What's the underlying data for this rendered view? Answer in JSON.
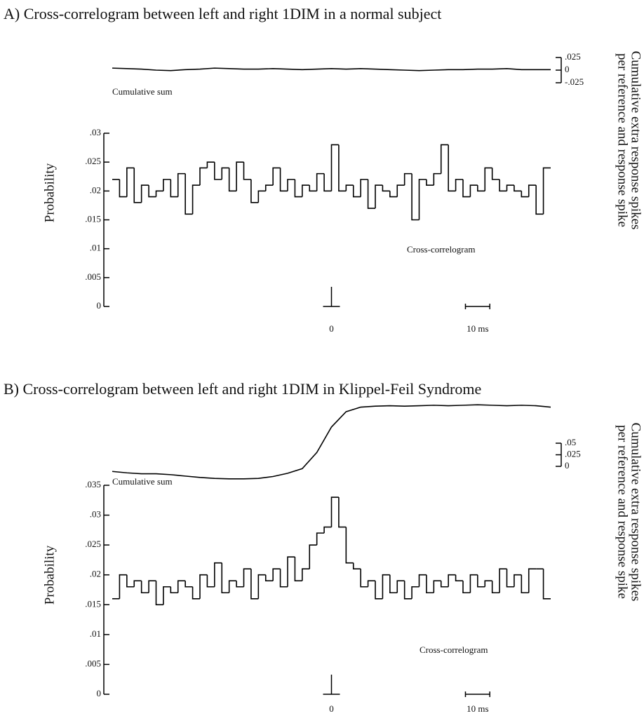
{
  "chart_data": [
    {
      "type": "histogram",
      "title": "A)  Cross-correlogram between left and right 1DIM in a normal subject",
      "ylabel": "Probability",
      "y2label": [
        "Cumulative extra response spikes",
        "per reference and response spike"
      ],
      "annotations": [
        "Cumulative sum",
        "Cross-correlogram"
      ],
      "color": "#000000",
      "bins": [
        -90,
        -87,
        -84,
        -81,
        -78,
        -75,
        -72,
        -69,
        -66,
        -63,
        -60,
        -57,
        -54,
        -51,
        -48,
        -45,
        -42,
        -39,
        -36,
        -33,
        -30,
        -27,
        -24,
        -21,
        -18,
        -15,
        -12,
        -9,
        -6,
        -3,
        0,
        3,
        6,
        9,
        12,
        15,
        18,
        21,
        24,
        27,
        30,
        33,
        36,
        39,
        42,
        45,
        48,
        51,
        54,
        57,
        60,
        63,
        66,
        69,
        72,
        75,
        78,
        81,
        84,
        87,
        90
      ],
      "values": [
        0.022,
        0.019,
        0.024,
        0.018,
        0.021,
        0.019,
        0.02,
        0.022,
        0.019,
        0.023,
        0.016,
        0.021,
        0.024,
        0.025,
        0.022,
        0.024,
        0.02,
        0.025,
        0.022,
        0.018,
        0.02,
        0.021,
        0.024,
        0.02,
        0.022,
        0.019,
        0.021,
        0.02,
        0.023,
        0.02,
        0.028,
        0.02,
        0.021,
        0.019,
        0.022,
        0.017,
        0.021,
        0.02,
        0.019,
        0.021,
        0.023,
        0.015,
        0.022,
        0.021,
        0.023,
        0.028,
        0.02,
        0.022,
        0.019,
        0.021,
        0.02,
        0.024,
        0.022,
        0.02,
        0.021,
        0.02,
        0.019,
        0.021,
        0.016,
        0.024
      ],
      "xlim": [
        -90,
        90
      ],
      "xticks": [
        {
          "value": 0,
          "label": "0"
        }
      ],
      "scale_bar": {
        "value": 10,
        "label": "10 ms"
      },
      "ylim": [
        0,
        0.03
      ],
      "yticks": [
        {
          "value": 0,
          "label": "0"
        },
        {
          "value": 0.005,
          "label": ".005"
        },
        {
          "value": 0.01,
          "label": ".01"
        },
        {
          "value": 0.015,
          "label": ".015"
        },
        {
          "value": 0.02,
          "label": ".02"
        },
        {
          "value": 0.025,
          "label": ".025"
        },
        {
          "value": 0.03,
          "label": ".03"
        }
      ],
      "line": {
        "axis": "y2",
        "x": [
          -90,
          -84,
          -78,
          -72,
          -66,
          -60,
          -54,
          -48,
          -42,
          -36,
          -30,
          -24,
          -18,
          -12,
          -6,
          0,
          6,
          12,
          18,
          24,
          30,
          36,
          42,
          48,
          54,
          60,
          66,
          72,
          78,
          84,
          90
        ],
        "values": [
          0.004,
          0.003,
          0.002,
          0.0,
          -0.001,
          0.001,
          0.002,
          0.004,
          0.003,
          0.002,
          0.002,
          0.003,
          0.002,
          0.001,
          0.002,
          0.003,
          0.002,
          0.003,
          0.002,
          0.001,
          0.0,
          -0.001,
          0.0,
          0.001,
          0.001,
          0.002,
          0.002,
          0.003,
          0.001,
          0.001,
          0.001
        ]
      },
      "y2lim": [
        -0.025,
        0.025
      ],
      "y2ticks": [
        {
          "value": -0.025,
          "label": "-.025"
        },
        {
          "value": 0,
          "label": "0"
        },
        {
          "value": 0.025,
          "label": ".025"
        }
      ]
    },
    {
      "type": "histogram",
      "title": "B)  Cross-correlogram between left and right 1DIM in Klippel-Feil Syndrome",
      "ylabel": "Probability",
      "y2label": [
        "Cumulative extra response spikes",
        "per reference and response spike"
      ],
      "annotations": [
        "Cumulative sum",
        "Cross-correlogram"
      ],
      "color": "#000000",
      "bins": [
        -90,
        -87,
        -84,
        -81,
        -78,
        -75,
        -72,
        -69,
        -66,
        -63,
        -60,
        -57,
        -54,
        -51,
        -48,
        -45,
        -42,
        -39,
        -36,
        -33,
        -30,
        -27,
        -24,
        -21,
        -18,
        -15,
        -12,
        -9,
        -6,
        -3,
        0,
        3,
        6,
        9,
        12,
        15,
        18,
        21,
        24,
        27,
        30,
        33,
        36,
        39,
        42,
        45,
        48,
        51,
        54,
        57,
        60,
        63,
        66,
        69,
        72,
        75,
        78,
        81,
        84,
        87,
        90
      ],
      "values": [
        0.016,
        0.02,
        0.018,
        0.019,
        0.017,
        0.019,
        0.015,
        0.018,
        0.017,
        0.019,
        0.018,
        0.016,
        0.02,
        0.018,
        0.022,
        0.017,
        0.019,
        0.018,
        0.021,
        0.016,
        0.02,
        0.019,
        0.021,
        0.018,
        0.023,
        0.019,
        0.021,
        0.025,
        0.027,
        0.028,
        0.033,
        0.028,
        0.022,
        0.021,
        0.018,
        0.019,
        0.016,
        0.02,
        0.017,
        0.019,
        0.016,
        0.018,
        0.02,
        0.017,
        0.019,
        0.018,
        0.02,
        0.019,
        0.017,
        0.02,
        0.018,
        0.019,
        0.017,
        0.021,
        0.018,
        0.02,
        0.017,
        0.021,
        0.021,
        0.016
      ],
      "xlim": [
        -90,
        90
      ],
      "xticks": [
        {
          "value": 0,
          "label": "0"
        }
      ],
      "scale_bar": {
        "value": 10,
        "label": "10 ms"
      },
      "ylim": [
        0,
        0.035
      ],
      "yticks": [
        {
          "value": 0,
          "label": "0"
        },
        {
          "value": 0.005,
          "label": ".005"
        },
        {
          "value": 0.01,
          "label": ".01"
        },
        {
          "value": 0.015,
          "label": ".015"
        },
        {
          "value": 0.02,
          "label": ".02"
        },
        {
          "value": 0.025,
          "label": ".025"
        },
        {
          "value": 0.03,
          "label": ".03"
        },
        {
          "value": 0.035,
          "label": ".035"
        }
      ],
      "line": {
        "axis": "y2",
        "x": [
          -90,
          -84,
          -78,
          -72,
          -66,
          -60,
          -54,
          -48,
          -42,
          -36,
          -30,
          -24,
          -18,
          -12,
          -6,
          0,
          6,
          12,
          18,
          24,
          30,
          36,
          42,
          48,
          54,
          60,
          66,
          72,
          78,
          84,
          90
        ],
        "values": [
          -0.011,
          -0.014,
          -0.016,
          -0.016,
          -0.018,
          -0.021,
          -0.024,
          -0.026,
          -0.027,
          -0.027,
          -0.026,
          -0.022,
          -0.015,
          -0.005,
          0.03,
          0.085,
          0.118,
          0.128,
          0.13,
          0.131,
          0.13,
          0.131,
          0.132,
          0.131,
          0.132,
          0.133,
          0.132,
          0.131,
          0.132,
          0.131,
          0.128
        ]
      },
      "y2lim": [
        0,
        0.05
      ],
      "y2ticks": [
        {
          "value": 0,
          "label": "0"
        },
        {
          "value": 0.025,
          "label": ".025"
        },
        {
          "value": 0.05,
          "label": ".05"
        }
      ]
    }
  ]
}
